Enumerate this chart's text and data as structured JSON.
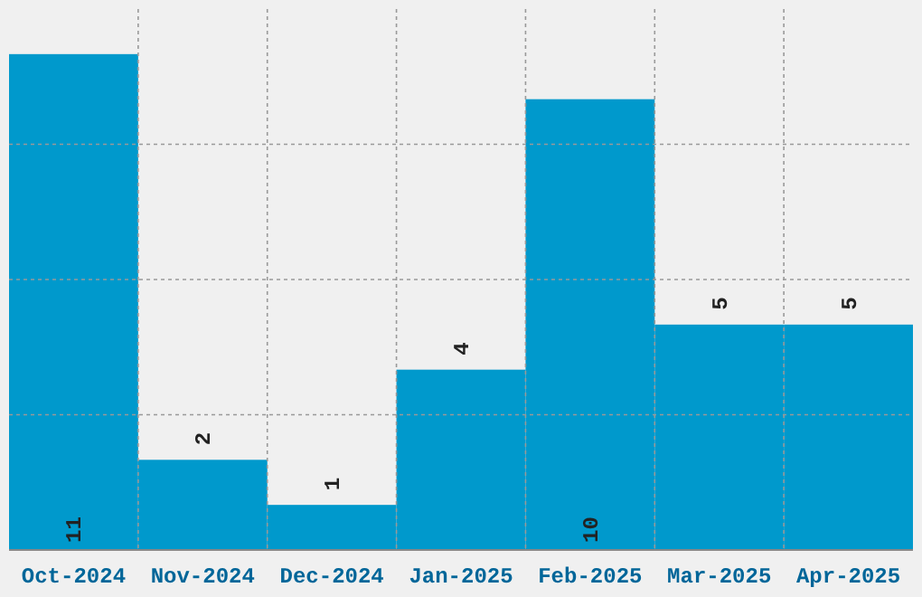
{
  "chart_data": {
    "type": "bar",
    "categories": [
      "Oct-2024",
      "Nov-2024",
      "Dec-2024",
      "Jan-2025",
      "Feb-2025",
      "Mar-2025",
      "Apr-2025"
    ],
    "values": [
      11,
      2,
      1,
      4,
      10,
      5,
      5
    ],
    "color": "#0099cc",
    "ylim": [
      0,
      12
    ],
    "yticks": [
      {
        "value": 3,
        "label": null
      },
      {
        "value": 6,
        "label": null
      },
      {
        "value": 9,
        "label": null
      }
    ],
    "grid": true,
    "tick_labels": "x",
    "data_labels": true
  }
}
